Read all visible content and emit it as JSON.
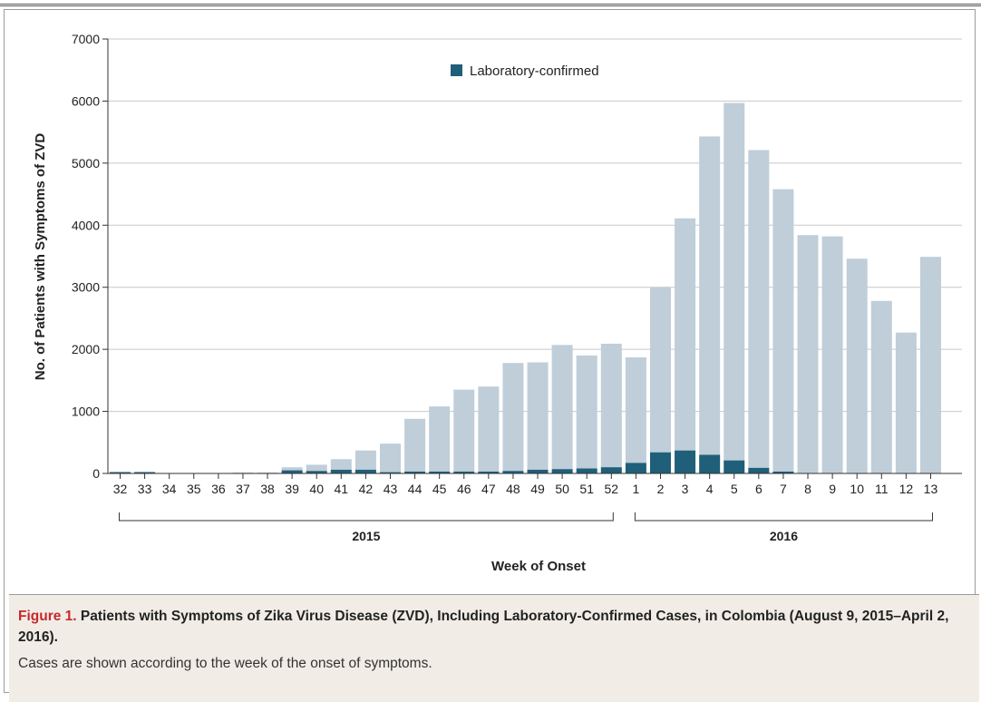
{
  "chart_data": {
    "type": "bar",
    "stacked": true,
    "title": "",
    "ylabel": "No. of Patients with Symptoms of ZVD",
    "xlabel": "Week of Onset",
    "ylim": [
      0,
      7000
    ],
    "yticks": [
      0,
      1000,
      2000,
      3000,
      4000,
      5000,
      6000,
      7000
    ],
    "grid": true,
    "legend": {
      "placement": "top-center",
      "entries": [
        "Laboratory-confirmed"
      ]
    },
    "categories": [
      "32",
      "33",
      "34",
      "35",
      "36",
      "37",
      "38",
      "39",
      "40",
      "41",
      "42",
      "43",
      "44",
      "45",
      "46",
      "47",
      "48",
      "49",
      "50",
      "51",
      "52",
      "1",
      "2",
      "3",
      "4",
      "5",
      "6",
      "7",
      "8",
      "9",
      "10",
      "11",
      "12",
      "13"
    ],
    "year_groups": [
      {
        "label": "2015",
        "first": "32",
        "last": "52"
      },
      {
        "label": "2016",
        "first": "1",
        "last": "13"
      }
    ],
    "series": [
      {
        "name": "Laboratory-confirmed",
        "color": "#1f5f79",
        "values": [
          20,
          20,
          0,
          0,
          0,
          5,
          5,
          50,
          40,
          60,
          60,
          20,
          30,
          30,
          30,
          30,
          40,
          60,
          70,
          80,
          100,
          170,
          340,
          370,
          300,
          210,
          90,
          30,
          0,
          0,
          0,
          0,
          0,
          0
        ]
      },
      {
        "color": "#bfced9",
        "values": [
          10,
          10,
          0,
          0,
          0,
          10,
          10,
          50,
          100,
          170,
          310,
          460,
          850,
          1050,
          1320,
          1370,
          1740,
          1730,
          2000,
          1820,
          1990,
          1700,
          2660,
          3740,
          5130,
          5760,
          5120,
          4550,
          3840,
          3820,
          3460,
          2780,
          2270,
          3490
        ]
      }
    ]
  },
  "caption": {
    "label": "Figure 1.",
    "title": "Patients with Symptoms of Zika Virus Disease (ZVD), Including Laboratory-Confirmed Cases, in Colombia (August 9, 2015–April 2, 2016).",
    "text": "Cases are shown according to the week of the onset of symptoms."
  }
}
